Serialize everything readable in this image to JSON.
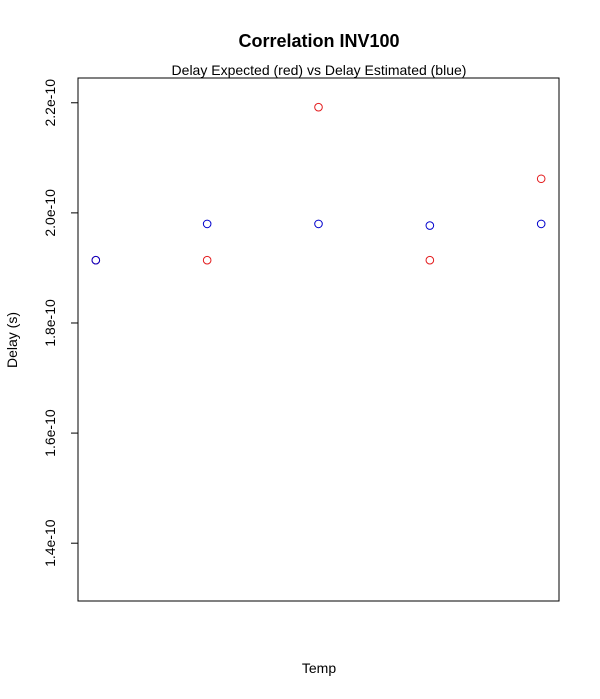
{
  "chart_data": {
    "type": "scatter",
    "title": "Correlation INV100",
    "subtitle": "Delay Expected (red) vs Delay Estimated (blue)",
    "xlabel": "Temp",
    "ylabel": "Delay (s)",
    "xlim": [
      0.84,
      5.16
    ],
    "ylim": [
      1.295e-10,
      2.245e-10
    ],
    "y_ticks": [
      1.4e-10,
      1.6e-10,
      1.8e-10,
      2e-10,
      2.2e-10
    ],
    "y_tick_labels": [
      "1.4e-10",
      "1.6e-10",
      "1.8e-10",
      "2.0e-10",
      "2.2e-10"
    ],
    "x_ticks_shown": false,
    "grid": false,
    "series": [
      {
        "color": "#e31a1c",
        "x": [
          1,
          2,
          3,
          4,
          5
        ],
        "y": [
          1.914e-10,
          1.914e-10,
          2.192e-10,
          1.914e-10,
          2.062e-10
        ]
      },
      {
        "color": "#0000cc",
        "x": [
          1,
          2,
          3,
          4,
          5
        ],
        "y": [
          1.914e-10,
          1.98e-10,
          1.98e-10,
          1.977e-10,
          1.98e-10
        ]
      }
    ]
  }
}
